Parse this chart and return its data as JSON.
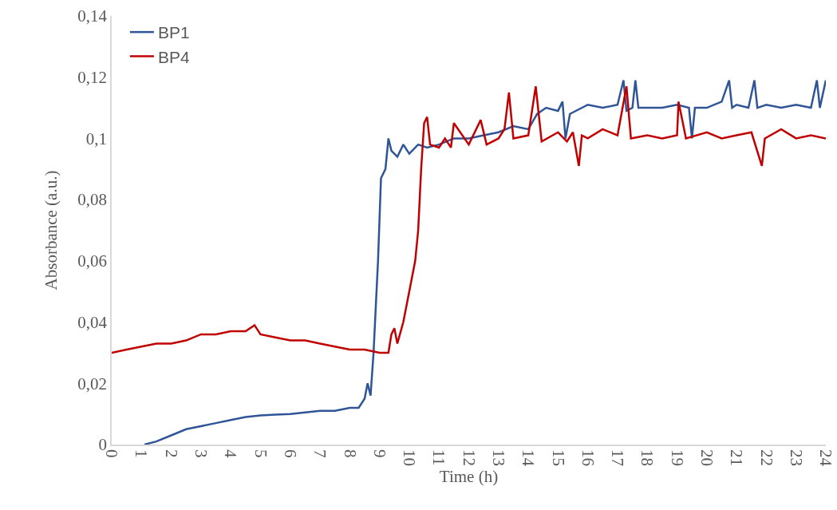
{
  "chart_data": {
    "type": "line",
    "xlabel": "Time (h)",
    "ylabel": "Absorbance (a.u.)",
    "xlim": [
      0,
      24
    ],
    "xticks": [
      0,
      1,
      2,
      3,
      4,
      5,
      6,
      7,
      8,
      9,
      10,
      11,
      12,
      13,
      14,
      15,
      16,
      17,
      18,
      19,
      20,
      21,
      22,
      23,
      24
    ],
    "ylim": [
      0,
      0.14
    ],
    "yticks": [
      0,
      {
        "value": 0.02,
        "label": "0,02"
      },
      {
        "value": 0.04,
        "label": "0,04"
      },
      {
        "value": 0.06,
        "label": "0,06"
      },
      {
        "value": 0.08,
        "label": "0,08"
      },
      {
        "value": 0.1,
        "label": "0,1"
      },
      {
        "value": 0.12,
        "label": "0,12"
      },
      {
        "value": 0.14,
        "label": "0,14"
      }
    ],
    "grid": false,
    "legend": "top left",
    "marker": "none",
    "line_style": "solid",
    "series": [
      {
        "name": "BP1",
        "color": "#2f5597",
        "x": [
          1.1,
          1.5,
          2,
          2.5,
          3,
          3.5,
          4,
          4.5,
          5,
          5.5,
          6,
          6.5,
          7,
          7.5,
          8,
          8.3,
          8.5,
          8.6,
          8.7,
          8.8,
          8.95,
          9.05,
          9.2,
          9.3,
          9.4,
          9.6,
          9.8,
          10,
          10.3,
          10.6,
          11,
          11.5,
          12,
          12.5,
          13,
          13.5,
          14,
          14.3,
          14.6,
          15,
          15.15,
          15.25,
          15.4,
          16,
          16.5,
          17,
          17.2,
          17.3,
          17.5,
          17.6,
          17.7,
          18,
          18.5,
          19,
          19.4,
          19.5,
          19.6,
          20,
          20.5,
          20.75,
          20.85,
          21,
          21.4,
          21.6,
          21.7,
          22,
          22.5,
          23,
          23.5,
          23.7,
          23.8,
          24
        ],
        "values": [
          0,
          0.001,
          0.003,
          0.005,
          0.006,
          0.007,
          0.008,
          0.009,
          0.0095,
          0.0098,
          0.01,
          0.0105,
          0.011,
          0.011,
          0.012,
          0.012,
          0.015,
          0.02,
          0.016,
          0.03,
          0.06,
          0.087,
          0.09,
          0.1,
          0.096,
          0.094,
          0.098,
          0.095,
          0.098,
          0.097,
          0.098,
          0.1,
          0.1,
          0.101,
          0.102,
          0.104,
          0.103,
          0.108,
          0.11,
          0.109,
          0.112,
          0.1,
          0.108,
          0.111,
          0.11,
          0.111,
          0.119,
          0.109,
          0.11,
          0.119,
          0.11,
          0.11,
          0.11,
          0.111,
          0.11,
          0.1,
          0.11,
          0.11,
          0.112,
          0.119,
          0.11,
          0.111,
          0.11,
          0.119,
          0.11,
          0.111,
          0.11,
          0.111,
          0.11,
          0.119,
          0.11,
          0.119
        ]
      },
      {
        "name": "BP4",
        "color": "#c00000",
        "x": [
          0,
          0.5,
          1,
          1.5,
          2,
          2.5,
          3,
          3.5,
          4,
          4.5,
          4.8,
          5,
          5.5,
          6,
          6.5,
          7,
          7.5,
          8,
          8.5,
          9,
          9.3,
          9.4,
          9.5,
          9.6,
          9.8,
          10,
          10.2,
          10.3,
          10.4,
          10.5,
          10.6,
          10.7,
          11,
          11.2,
          11.4,
          11.5,
          12,
          12.4,
          12.6,
          13,
          13.2,
          13.35,
          13.5,
          14,
          14.25,
          14.45,
          15,
          15.3,
          15.5,
          15.7,
          15.8,
          16,
          16.5,
          17,
          17.3,
          17.45,
          18,
          18.5,
          19,
          19.05,
          19.3,
          20,
          20.5,
          21,
          21.5,
          21.85,
          21.95,
          22.5,
          23,
          23.5,
          24
        ],
        "values": [
          0.03,
          0.031,
          0.032,
          0.033,
          0.033,
          0.034,
          0.036,
          0.036,
          0.037,
          0.037,
          0.039,
          0.036,
          0.035,
          0.034,
          0.034,
          0.033,
          0.032,
          0.031,
          0.031,
          0.03,
          0.03,
          0.036,
          0.038,
          0.033,
          0.04,
          0.05,
          0.06,
          0.07,
          0.09,
          0.105,
          0.107,
          0.098,
          0.097,
          0.1,
          0.097,
          0.105,
          0.098,
          0.106,
          0.098,
          0.1,
          0.103,
          0.115,
          0.1,
          0.101,
          0.117,
          0.099,
          0.102,
          0.099,
          0.102,
          0.091,
          0.101,
          0.1,
          0.103,
          0.101,
          0.117,
          0.1,
          0.101,
          0.1,
          0.101,
          0.112,
          0.1,
          0.102,
          0.1,
          0.101,
          0.102,
          0.091,
          0.1,
          0.103,
          0.1,
          0.101,
          0.1
        ]
      }
    ]
  }
}
